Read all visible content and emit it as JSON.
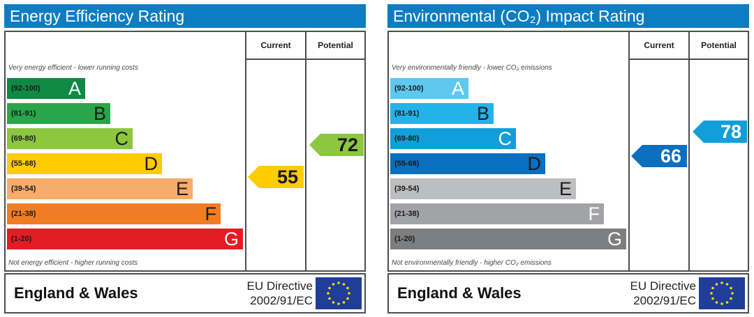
{
  "chart_data": [
    {
      "type": "rating-bands",
      "title": "Energy Efficiency Rating",
      "columns": [
        "Current",
        "Potential"
      ],
      "top_note": "Very energy efficient - lower running costs",
      "bottom_note": "Not energy efficient - higher running costs",
      "bands": [
        {
          "range": "(92-100)",
          "letter": "A",
          "color": "#0f8a45"
        },
        {
          "range": "(81-91)",
          "letter": "B",
          "color": "#2aa64a"
        },
        {
          "range": "(69-80)",
          "letter": "C",
          "color": "#8dc63f"
        },
        {
          "range": "(55-68)",
          "letter": "D",
          "color": "#ffcc00"
        },
        {
          "range": "(39-54)",
          "letter": "E",
          "color": "#f7ac6b"
        },
        {
          "range": "(21-38)",
          "letter": "F",
          "color": "#f07d24"
        },
        {
          "range": "(1-20)",
          "letter": "G",
          "color": "#e31d23"
        }
      ],
      "current": {
        "value": 55,
        "band": "D",
        "color": "#ffcc00"
      },
      "potential": {
        "value": 72,
        "band": "C",
        "color": "#8dc63f"
      },
      "footer": {
        "region": "England & Wales",
        "directive_line1": "EU Directive",
        "directive_line2": "2002/91/EC"
      }
    },
    {
      "type": "rating-bands",
      "title": "Environmental (CO₂) Impact Rating",
      "columns": [
        "Current",
        "Potential"
      ],
      "top_note": "Very environmentally friendly - lower CO₂ emissions",
      "bottom_note": "Not environmentally friendly - higher CO₂ emissions",
      "bands": [
        {
          "range": "(92-100)",
          "letter": "A",
          "color": "#5ec8f0"
        },
        {
          "range": "(81-91)",
          "letter": "B",
          "color": "#22b3ea"
        },
        {
          "range": "(69-80)",
          "letter": "C",
          "color": "#129fd9"
        },
        {
          "range": "(55-68)",
          "letter": "D",
          "color": "#0b6fc0"
        },
        {
          "range": "(39-54)",
          "letter": "E",
          "color": "#bdbec0"
        },
        {
          "range": "(21-38)",
          "letter": "F",
          "color": "#a2a3a6"
        },
        {
          "range": "(1-20)",
          "letter": "G",
          "color": "#7d7e80"
        }
      ],
      "current": {
        "value": 66,
        "band": "D",
        "color": "#0b6fc0"
      },
      "potential": {
        "value": 78,
        "band": "C",
        "color": "#129fd9"
      },
      "footer": {
        "region": "England & Wales",
        "directive_line1": "EU Directive",
        "directive_line2": "2002/91/EC"
      }
    }
  ]
}
